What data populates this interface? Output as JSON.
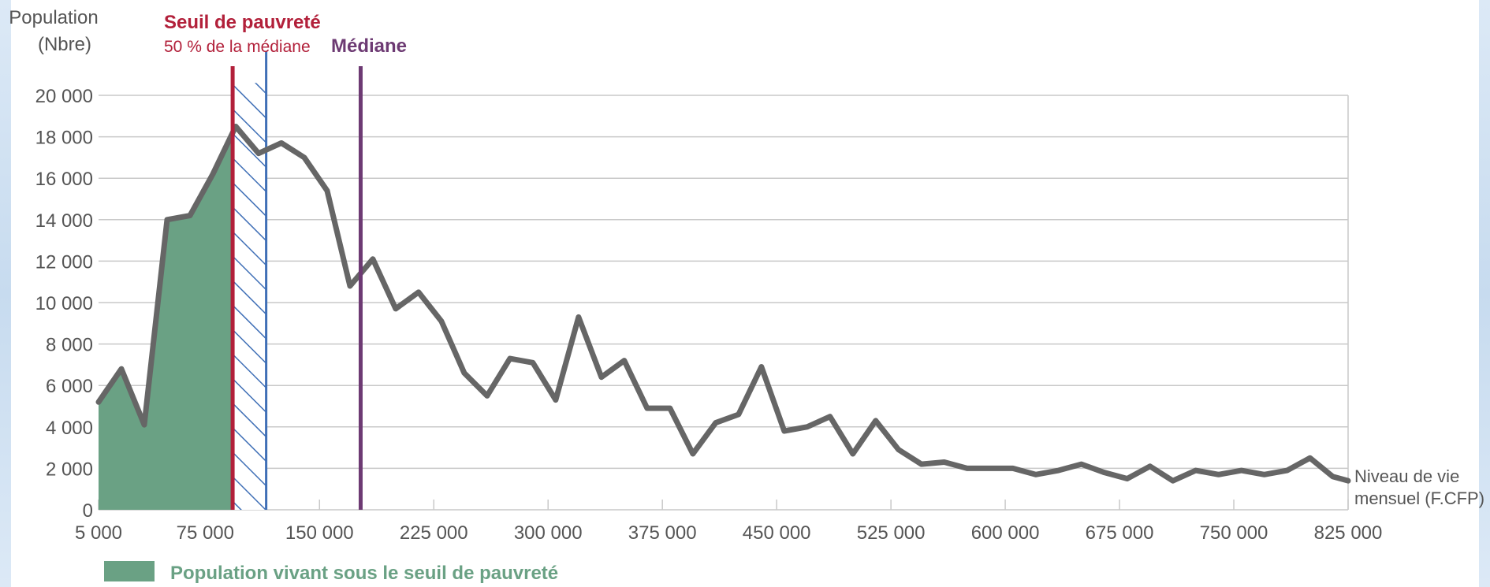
{
  "colors": {
    "line": "#666666",
    "area_fill": "#6aa184",
    "area_legend": "#6aa184",
    "threshold": "#b2203a",
    "median": "#6d3a73",
    "hatch": "#3f6fb6",
    "grid": "#c9c9c9",
    "tick_text": "#555555"
  },
  "chart_data": {
    "type": "line",
    "y_title_line1": "Population",
    "y_title_line2": "(Nbre)",
    "x_title_line1": "Niveau de vie",
    "x_title_line2": "mensuel (F.CFP)",
    "xlim": [
      5000,
      825000
    ],
    "ylim": [
      0,
      20000
    ],
    "x_ticks": [
      5000,
      75000,
      150000,
      225000,
      300000,
      375000,
      450000,
      525000,
      600000,
      675000,
      750000,
      825000
    ],
    "x_tick_labels": [
      "5 000",
      "75 000",
      "150 000",
      "225 000",
      "300 000",
      "375 000",
      "450 000",
      "525 000",
      "600 000",
      "675 000",
      "750 000",
      "825 000"
    ],
    "y_ticks": [
      0,
      2000,
      4000,
      6000,
      8000,
      10000,
      12000,
      14000,
      16000,
      18000,
      20000
    ],
    "y_tick_labels": [
      "0",
      "2 000",
      "4 000",
      "6 000",
      "8 000",
      "10 000",
      "12 000",
      "14 000",
      "16 000",
      "18 000",
      "20 000"
    ],
    "grid": true,
    "series": [
      {
        "name": "Population",
        "points": [
          [
            5000,
            5200
          ],
          [
            20000,
            6800
          ],
          [
            35000,
            4100
          ],
          [
            50000,
            14000
          ],
          [
            65000,
            14200
          ],
          [
            80000,
            16200
          ],
          [
            95000,
            18500
          ],
          [
            110000,
            17200
          ],
          [
            125000,
            17700
          ],
          [
            140000,
            17000
          ],
          [
            155000,
            15400
          ],
          [
            170000,
            10800
          ],
          [
            185000,
            12100
          ],
          [
            200000,
            9700
          ],
          [
            215000,
            10500
          ],
          [
            230000,
            9100
          ],
          [
            245000,
            6600
          ],
          [
            260000,
            5500
          ],
          [
            275000,
            7300
          ],
          [
            290000,
            7100
          ],
          [
            305000,
            5300
          ],
          [
            320000,
            9300
          ],
          [
            335000,
            6400
          ],
          [
            350000,
            7200
          ],
          [
            365000,
            4900
          ],
          [
            380000,
            4900
          ],
          [
            395000,
            2700
          ],
          [
            410000,
            4200
          ],
          [
            425000,
            4600
          ],
          [
            440000,
            6900
          ],
          [
            455000,
            3800
          ],
          [
            470000,
            4000
          ],
          [
            485000,
            4500
          ],
          [
            500000,
            2700
          ],
          [
            515000,
            4300
          ],
          [
            530000,
            2900
          ],
          [
            545000,
            2200
          ],
          [
            560000,
            2300
          ],
          [
            575000,
            2000
          ],
          [
            590000,
            2000
          ],
          [
            605000,
            2000
          ],
          [
            620000,
            1700
          ],
          [
            635000,
            1900
          ],
          [
            650000,
            2200
          ],
          [
            665000,
            1800
          ],
          [
            680000,
            1500
          ],
          [
            695000,
            2100
          ],
          [
            710000,
            1400
          ],
          [
            725000,
            1900
          ],
          [
            740000,
            1700
          ],
          [
            755000,
            1900
          ],
          [
            770000,
            1700
          ],
          [
            785000,
            1900
          ],
          [
            800000,
            2500
          ],
          [
            815000,
            1600
          ],
          [
            825000,
            1400
          ]
        ]
      }
    ],
    "poverty_threshold": {
      "x": 93000,
      "title": "Seuil de pauvreté",
      "subtitle": "50 % de la médiane"
    },
    "hatch_band": {
      "x_start": 93000,
      "x_end": 115000,
      "y_top": 20600
    },
    "median": {
      "x": 177000,
      "label": "Médiane"
    },
    "legend": {
      "label": "Population vivant sous le seuil de pauvreté",
      "position": "bottom-left"
    }
  }
}
